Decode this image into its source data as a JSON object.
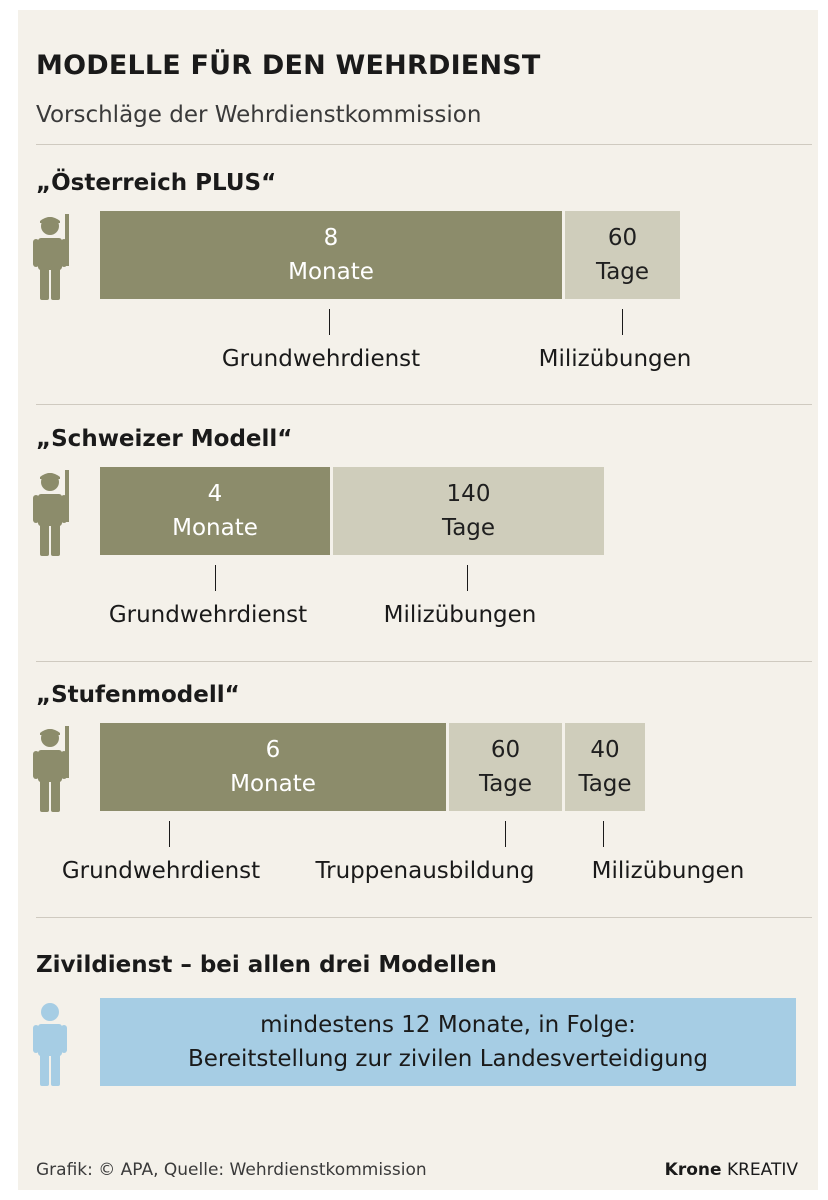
{
  "header": {
    "title": "MODELLE FÜR DEN WEHRDIENST",
    "subtitle": "Vorschläge der Wehrdienstkommission"
  },
  "colors": {
    "grundwehrdienst": "#8c8c6b",
    "other": "#cfcdbb",
    "zivildienst": "#a6cde4",
    "soldier_icon": "#8c8c6b",
    "civilian_icon": "#a6cde4"
  },
  "icons": {
    "soldier": "soldier-icon",
    "civilian": "person-icon"
  },
  "chart_data": {
    "type": "bar",
    "stacked": true,
    "orientation": "horizontal",
    "models": [
      {
        "name": "„Österreich PLUS“",
        "segments": [
          {
            "value_text": "8",
            "unit_text": "Monate",
            "label": "Grundwehrdienst"
          },
          {
            "value_text": "60",
            "unit_text": "Tage",
            "label": "Milizübungen"
          }
        ]
      },
      {
        "name": "„Schweizer Modell“",
        "segments": [
          {
            "value_text": "4",
            "unit_text": "Monate",
            "label": "Grundwehrdienst"
          },
          {
            "value_text": "140",
            "unit_text": "Tage",
            "label": "Milizübungen"
          }
        ]
      },
      {
        "name": "„Stufenmodell“",
        "segments": [
          {
            "value_text": "6",
            "unit_text": "Monate",
            "label": "Grundwehrdienst"
          },
          {
            "value_text": "60",
            "unit_text": "Tage",
            "label": "Truppenausbildung"
          },
          {
            "value_text": "40",
            "unit_text": "Tage",
            "label": "Milizübungen"
          }
        ]
      }
    ]
  },
  "zivildienst": {
    "title": "Zivildienst – bei allen drei Modellen",
    "line1": "mindestens 12 Monate, in Folge:",
    "line2": "Bereitstellung zur zivilen Landesverteidigung"
  },
  "footer": {
    "source": "Grafik: © APA, Quelle: Wehrdienstkommission",
    "brand_bold": "Krone",
    "brand_light": "KREATIV"
  }
}
